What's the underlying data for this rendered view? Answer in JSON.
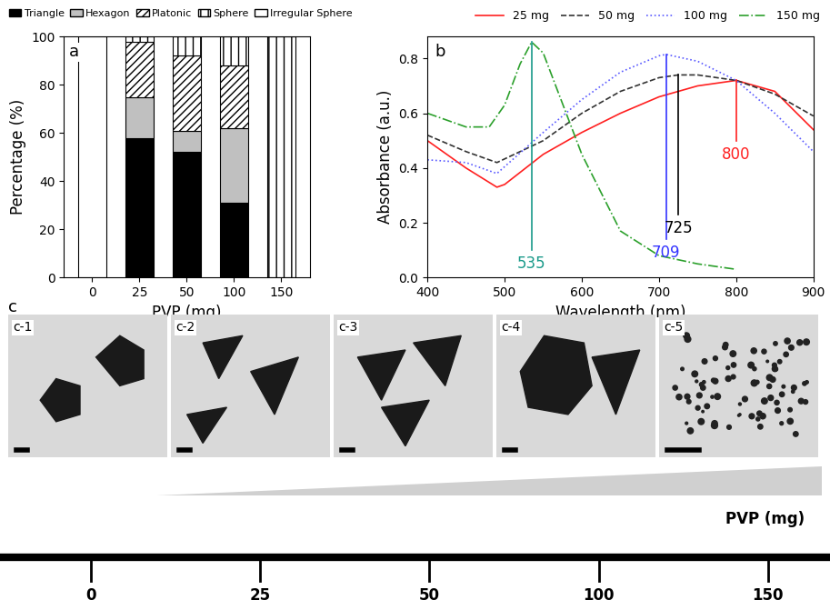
{
  "chart_data": [
    {
      "type": "bar",
      "panel": "a",
      "stacked": true,
      "x_label": "PVP (mg)",
      "y_label": "Percentage (%)",
      "categories": [
        "0",
        "25",
        "50",
        "100",
        "150"
      ],
      "ylim": [
        0,
        100
      ],
      "yticks": [
        0,
        20,
        40,
        60,
        80,
        100
      ],
      "legend": "upper left",
      "series": [
        {
          "name": "Triangle",
          "color": "#000000",
          "values": [
            0,
            58,
            52,
            31,
            0
          ]
        },
        {
          "name": "Hexagon",
          "color": "#c0c0c0",
          "values": [
            0,
            17,
            9,
            31,
            0
          ]
        },
        {
          "name": "Platonic",
          "color": "#ffffff",
          "values": [
            0,
            23,
            31,
            26,
            0
          ]
        },
        {
          "name": "Sphere",
          "color": "#ffffff",
          "values": [
            0,
            2,
            8,
            12,
            100
          ]
        },
        {
          "name": "Irregular Sphere",
          "color": "#ffffff",
          "values": [
            100,
            0,
            0,
            0,
            0
          ]
        }
      ]
    },
    {
      "type": "line",
      "panel": "b",
      "x_label": "Wavelength (nm)",
      "y_label": "Absorbance (a.u.)",
      "xlim": [
        400,
        900
      ],
      "xticks": [
        400,
        500,
        600,
        700,
        800,
        900
      ],
      "ylim": [
        0.0,
        0.88
      ],
      "yticks": [
        {
          "value": 0.0,
          "label": "0.0"
        },
        {
          "value": 0.2,
          "label": "0.2"
        },
        {
          "value": 0.4,
          "label": "0.4"
        },
        {
          "value": 0.6,
          "label": "0.6"
        },
        {
          "value": 0.8,
          "label": "0.8"
        }
      ],
      "legend": "upper right",
      "series": [
        {
          "name": "25 mg",
          "color": "#ff2020",
          "line_style": "solid",
          "x": [
            400,
            450,
            490,
            500,
            550,
            600,
            650,
            700,
            750,
            800,
            850,
            900
          ],
          "values": [
            0.5,
            0.4,
            0.33,
            0.34,
            0.45,
            0.53,
            0.6,
            0.66,
            0.7,
            0.72,
            0.68,
            0.54
          ]
        },
        {
          "name": "50 mg",
          "color": "#333333",
          "line_style": "dashed",
          "x": [
            400,
            450,
            490,
            550,
            600,
            650,
            700,
            725,
            750,
            800,
            850,
            900
          ],
          "values": [
            0.52,
            0.46,
            0.42,
            0.5,
            0.6,
            0.68,
            0.73,
            0.74,
            0.74,
            0.72,
            0.67,
            0.59
          ]
        },
        {
          "name": "100 mg",
          "color": "#5a5aff",
          "line_style": "dotted",
          "x": [
            400,
            450,
            490,
            550,
            600,
            650,
            700,
            709,
            750,
            800,
            850,
            900
          ],
          "values": [
            0.43,
            0.42,
            0.38,
            0.53,
            0.65,
            0.75,
            0.81,
            0.815,
            0.79,
            0.72,
            0.6,
            0.46
          ]
        },
        {
          "name": "150 mg",
          "color": "#2ca02c",
          "line_style": "dashdot",
          "x": [
            400,
            450,
            480,
            500,
            520,
            535,
            550,
            600,
            650,
            700,
            750,
            800
          ],
          "values": [
            0.6,
            0.55,
            0.55,
            0.63,
            0.78,
            0.86,
            0.82,
            0.45,
            0.17,
            0.08,
            0.05,
            0.03
          ]
        }
      ],
      "annotations": [
        {
          "text": "535",
          "x": 535,
          "y": 0.86,
          "color": "#1a9a8a"
        },
        {
          "text": "709",
          "x": 709,
          "y": 0.815,
          "color": "#3333ff"
        },
        {
          "text": "725",
          "x": 725,
          "y": 0.74,
          "color": "#000000"
        },
        {
          "text": "800",
          "x": 800,
          "y": 0.72,
          "color": "#ff2020"
        }
      ]
    }
  ],
  "images": {
    "panel": "c",
    "labels": [
      "c-1",
      "c-2",
      "c-3",
      "c-4",
      "c-5"
    ]
  },
  "scale": {
    "label": "PVP (mg)",
    "ticks": [
      0,
      25,
      50,
      100,
      150
    ]
  }
}
